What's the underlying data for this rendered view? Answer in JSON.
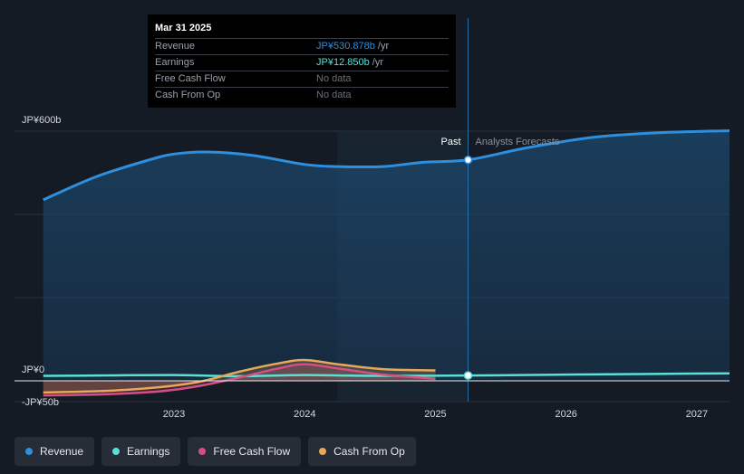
{
  "chart_data": {
    "type": "area",
    "title": "",
    "xlabel": "",
    "ylabel": "",
    "currency_prefix": "JP¥",
    "ylim": [
      -50,
      600
    ],
    "y_ticks": [
      {
        "value": 600,
        "label": "JP¥600b"
      },
      {
        "value": 0,
        "label": "JP¥0"
      },
      {
        "value": -50,
        "label": "-JP¥50b"
      }
    ],
    "x_ticks": [
      {
        "value": 2023,
        "label": "2023"
      },
      {
        "value": 2024,
        "label": "2024"
      },
      {
        "value": 2025,
        "label": "2025"
      },
      {
        "value": 2026,
        "label": "2026"
      },
      {
        "value": 2027,
        "label": "2027"
      }
    ],
    "xlim": [
      2021.78,
      2027.25
    ],
    "past_label": "Past",
    "forecast_label": "Analysts Forecasts",
    "past_end": 2025.25,
    "shaded_start": 2024.25,
    "series": [
      {
        "name": "Revenue",
        "color": "#2e8fde",
        "points": [
          [
            2022.0,
            435
          ],
          [
            2022.4,
            490
          ],
          [
            2022.8,
            530
          ],
          [
            2023.0,
            545
          ],
          [
            2023.25,
            550
          ],
          [
            2023.6,
            542
          ],
          [
            2024.0,
            520
          ],
          [
            2024.25,
            515
          ],
          [
            2024.6,
            515
          ],
          [
            2024.9,
            525
          ],
          [
            2025.25,
            531
          ]
        ],
        "forecast": [
          [
            2025.25,
            531
          ],
          [
            2025.7,
            560
          ],
          [
            2026.2,
            585
          ],
          [
            2026.7,
            596
          ],
          [
            2027.25,
            601
          ]
        ]
      },
      {
        "name": "Earnings",
        "color": "#5ae0d4",
        "points": [
          [
            2022.0,
            12
          ],
          [
            2022.5,
            13
          ],
          [
            2023.0,
            14
          ],
          [
            2023.5,
            11
          ],
          [
            2024.0,
            14
          ],
          [
            2024.5,
            12
          ],
          [
            2025.25,
            12.85
          ]
        ],
        "forecast": [
          [
            2025.25,
            12.85
          ],
          [
            2026.0,
            15
          ],
          [
            2027.25,
            18
          ]
        ]
      },
      {
        "name": "Free Cash Flow",
        "color": "#d64f83",
        "points": [
          [
            2022.0,
            -35
          ],
          [
            2022.5,
            -32
          ],
          [
            2022.9,
            -25
          ],
          [
            2023.2,
            -12
          ],
          [
            2023.5,
            8
          ],
          [
            2023.8,
            30
          ],
          [
            2024.0,
            40
          ],
          [
            2024.25,
            30
          ],
          [
            2024.6,
            15
          ],
          [
            2025.0,
            5
          ]
        ]
      },
      {
        "name": "Cash From Op",
        "color": "#e8a85a",
        "points": [
          [
            2022.0,
            -28
          ],
          [
            2022.5,
            -24
          ],
          [
            2022.9,
            -15
          ],
          [
            2023.2,
            -2
          ],
          [
            2023.5,
            22
          ],
          [
            2023.8,
            42
          ],
          [
            2024.0,
            50
          ],
          [
            2024.25,
            40
          ],
          [
            2024.6,
            28
          ],
          [
            2025.0,
            25
          ]
        ]
      }
    ],
    "highlight_date": "Mar 31 2025"
  },
  "tooltip": {
    "date": "Mar 31 2025",
    "rows": [
      {
        "label": "Revenue",
        "value": "JP¥530.878b",
        "unit": " /yr",
        "color": "#2e8fde"
      },
      {
        "label": "Earnings",
        "value": "JP¥12.850b",
        "unit": " /yr",
        "color": "#5ae0d4"
      },
      {
        "label": "Free Cash Flow",
        "value": "No data",
        "unit": "",
        "color": "#6b7178"
      },
      {
        "label": "Cash From Op",
        "value": "No data",
        "unit": "",
        "color": "#6b7178"
      }
    ]
  },
  "legend": [
    {
      "label": "Revenue",
      "color": "#2e8fde"
    },
    {
      "label": "Earnings",
      "color": "#5ae0d4"
    },
    {
      "label": "Free Cash Flow",
      "color": "#d64f83"
    },
    {
      "label": "Cash From Op",
      "color": "#e8a85a"
    }
  ]
}
